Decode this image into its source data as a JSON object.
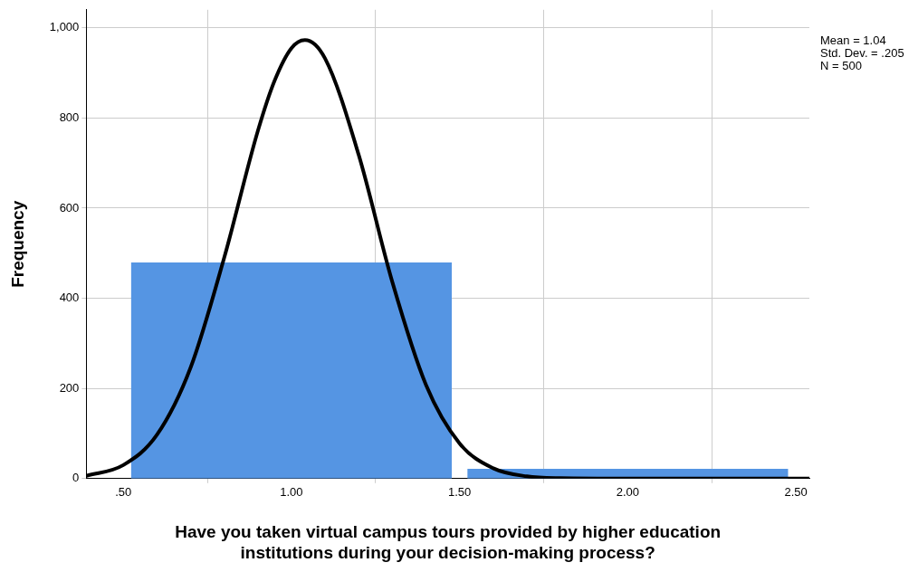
{
  "chart_data": {
    "type": "histogram",
    "xlabel": "Have you taken virtual campus tours provided by higher education\ninstitutions during your decision-making process?",
    "ylabel": "Frequency",
    "bins": [
      0.5,
      1.5,
      2.5
    ],
    "values": [
      479,
      21
    ],
    "color": "#5595e3",
    "series": [
      {
        "type": "line",
        "color": "#000000",
        "x": [
          0.39,
          0.5,
          0.6,
          0.7,
          0.8,
          0.9,
          0.95,
          1.0,
          1.04,
          1.1,
          1.2,
          1.3,
          1.4,
          1.5,
          1.6,
          1.7,
          1.8,
          2.0,
          2.54
        ],
        "values": [
          6,
          30,
          97,
          246,
          490,
          771,
          883,
          955,
          973,
          932,
          718,
          436,
          208,
          78,
          23,
          5,
          1,
          0,
          0
        ]
      }
    ],
    "xlim": [
      0.39,
      2.54
    ],
    "xticks": [
      {
        "value": 0.5,
        "label": ".50"
      },
      {
        "value": 1,
        "label": "1.00"
      },
      {
        "value": 1.5,
        "label": "1.50"
      },
      {
        "value": 2,
        "label": "2.00"
      },
      {
        "value": 2.5,
        "label": "2.50"
      }
    ],
    "ylim": [
      0,
      1040
    ],
    "yticks": [
      0,
      200,
      400,
      600,
      800,
      {
        "value": 1000,
        "label": "1,000"
      }
    ],
    "grid": true,
    "legend": false,
    "marker": "none",
    "line_style": "solid",
    "annotations": [
      "Mean = 1.04",
      "Std. Dev. = .205",
      "N = 500"
    ]
  }
}
